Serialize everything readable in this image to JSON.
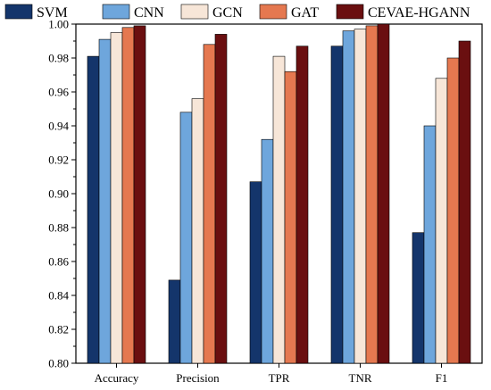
{
  "chart_data": {
    "type": "bar",
    "title": "",
    "xlabel": "",
    "ylabel": "",
    "categories": [
      "Accuracy",
      "Precision",
      "TPR",
      "TNR",
      "F1"
    ],
    "ylim": [
      0.8,
      1.0
    ],
    "yticks": [
      "0.80",
      "0.82",
      "0.84",
      "0.86",
      "0.88",
      "0.90",
      "0.92",
      "0.94",
      "0.96",
      "0.98",
      "1.00"
    ],
    "grid": false,
    "legend_position": "top",
    "series": [
      {
        "name": "SVM",
        "color": "#14356b",
        "values": [
          0.981,
          0.849,
          0.907,
          0.987,
          0.877
        ]
      },
      {
        "name": "CNN",
        "color": "#6ea6dc",
        "values": [
          0.991,
          0.948,
          0.932,
          0.996,
          0.94
        ]
      },
      {
        "name": "GCN",
        "color": "#f7e6d8",
        "values": [
          0.995,
          0.956,
          0.981,
          0.997,
          0.968
        ]
      },
      {
        "name": "GAT",
        "color": "#e57850",
        "values": [
          0.998,
          0.988,
          0.972,
          0.999,
          0.98
        ]
      },
      {
        "name": "CEVAE-HGANN",
        "color": "#6a0f10",
        "values": [
          0.999,
          0.994,
          0.987,
          1.0,
          0.99
        ]
      }
    ]
  }
}
